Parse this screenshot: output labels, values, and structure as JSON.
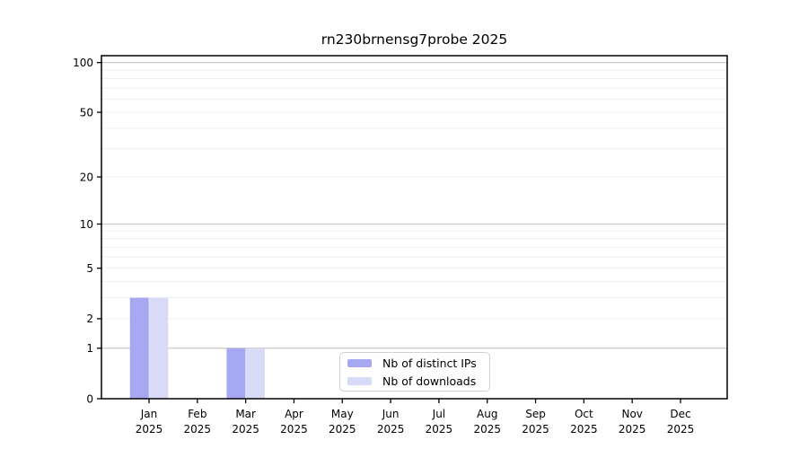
{
  "chart_data": {
    "type": "bar",
    "title": "rn230brnensg7probe 2025",
    "categories": [
      {
        "month": "Jan",
        "year": "2025"
      },
      {
        "month": "Feb",
        "year": "2025"
      },
      {
        "month": "Mar",
        "year": "2025"
      },
      {
        "month": "Apr",
        "year": "2025"
      },
      {
        "month": "May",
        "year": "2025"
      },
      {
        "month": "Jun",
        "year": "2025"
      },
      {
        "month": "Jul",
        "year": "2025"
      },
      {
        "month": "Aug",
        "year": "2025"
      },
      {
        "month": "Sep",
        "year": "2025"
      },
      {
        "month": "Oct",
        "year": "2025"
      },
      {
        "month": "Nov",
        "year": "2025"
      },
      {
        "month": "Dec",
        "year": "2025"
      }
    ],
    "series": [
      {
        "name": "Nb of distinct IPs",
        "color": "#a7a8f2",
        "values": [
          3,
          0,
          1,
          0,
          0,
          0,
          0,
          0,
          0,
          0,
          0,
          0
        ]
      },
      {
        "name": "Nb of downloads",
        "color": "#d9daf8",
        "values": [
          3,
          0,
          1,
          0,
          0,
          0,
          0,
          0,
          0,
          0,
          0,
          0
        ]
      }
    ],
    "y_axis": {
      "scale": "log10(1+v)",
      "ticks": [
        0,
        1,
        2,
        5,
        10,
        20,
        50,
        100
      ],
      "major_gridlines": [
        1,
        10,
        100
      ],
      "minor_gridlines": [
        2,
        3,
        4,
        5,
        6,
        7,
        8,
        9,
        20,
        30,
        40,
        50,
        60,
        70,
        80,
        90
      ],
      "ylim": [
        0,
        110
      ]
    },
    "legend": {
      "position": "inside-bottom-center",
      "items": [
        "Nb of distinct IPs",
        "Nb of downloads"
      ]
    },
    "grid": true
  },
  "colors": {
    "background": "#ffffff",
    "spine": "#000000",
    "text": "#000000",
    "grid_major": "#c9c9c9",
    "grid_minor": "#efefef",
    "legend_border": "#d2d2d2"
  }
}
